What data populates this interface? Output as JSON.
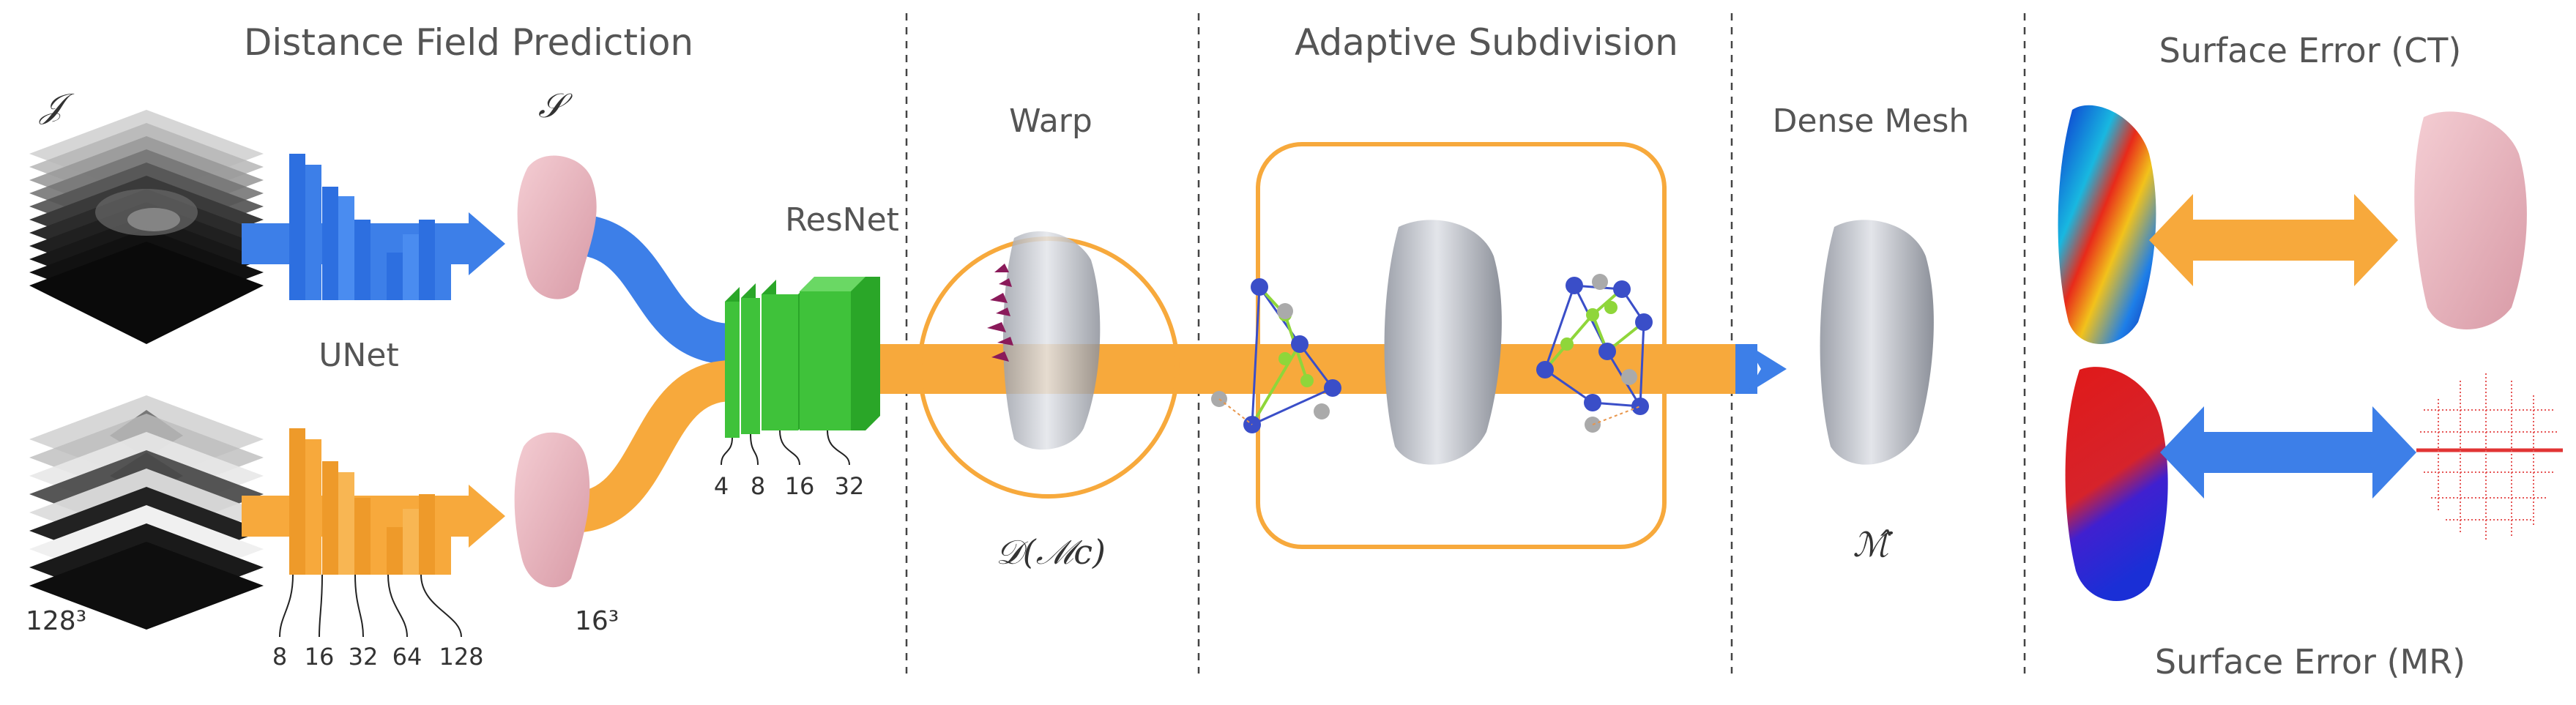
{
  "sections": {
    "distance_field": "Distance Field Prediction",
    "warp": "Warp",
    "adaptive": "Adaptive Subdivision",
    "dense_mesh": "Dense Mesh",
    "surface_ct": "Surface Error (CT)",
    "surface_mr": "Surface Error (MR)"
  },
  "labels": {
    "input_symbol": "𝒥",
    "sdf_symbol": "𝒮",
    "unet": "UNet",
    "resnet": "ResNet",
    "input_resolution": "128³",
    "output_resolution": "16³",
    "warp_formula": "𝒟(ℳc)",
    "mesh_symbol": "ℳ̂"
  },
  "unet_channels": [
    "8",
    "16",
    "32",
    "64",
    "128"
  ],
  "resnet_channels": [
    "4",
    "8",
    "16",
    "32"
  ],
  "colors": {
    "blue": "#3d7fe8",
    "orange": "#f7a93c",
    "green": "#3fc23a",
    "mesh": "#c9ccd3",
    "pink": "#eab3bd",
    "error_red": "#e01919",
    "error_blue": "#1a2fd6"
  }
}
